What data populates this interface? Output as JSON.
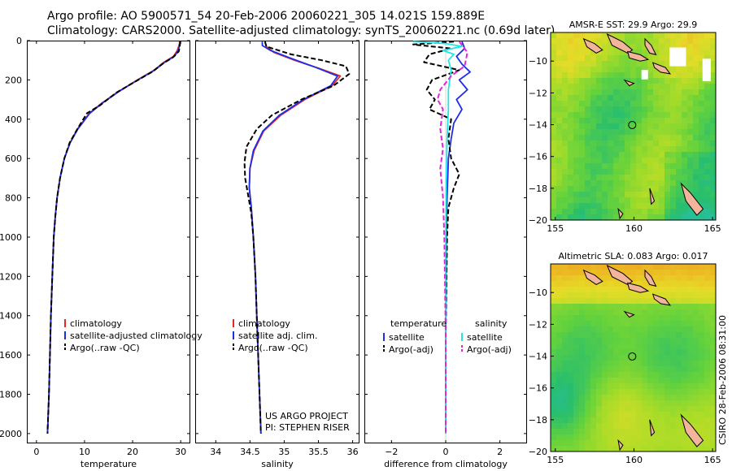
{
  "header": {
    "line1": "Argo profile: AO 5900571_54 20-Feb-2006 20060221_305 14.021S 159.889E",
    "line2": "Climatology: CARS2000. Satellite-adjusted climatology: synTS_20060221.nc (0.69d later)"
  },
  "credit": {
    "line1": "US ARGO PROJECT",
    "line2": "PI: STEPHEN RISER"
  },
  "side_note": "CSIRO 28-Feb-2006 08:31:00",
  "colors": {
    "climatology": "#e8281e",
    "satellite": "#1c2ee6",
    "argo": "#000000",
    "sat_salinity": "#22e6e6",
    "argo_salinity": "#e026d8"
  },
  "chart_data": [
    {
      "type": "line",
      "id": "temperature",
      "xlabel": "temperature",
      "ylabel": "",
      "xlim": [
        -2,
        32
      ],
      "ylim": [
        2050,
        0
      ],
      "xticks": [
        0,
        10,
        20,
        30
      ],
      "yticks": [
        0,
        200,
        400,
        600,
        800,
        1000,
        1200,
        1400,
        1600,
        1800,
        2000
      ],
      "legend": [
        "climatology",
        "satellite-adjusted climatology",
        "Argo(..raw -QC)"
      ],
      "series": [
        {
          "name": "climatology",
          "style": "solid",
          "color": "climatology",
          "points": [
            [
              29.8,
              5
            ],
            [
              29.7,
              20
            ],
            [
              29.3,
              50
            ],
            [
              28.5,
              80
            ],
            [
              26.5,
              110
            ],
            [
              24.5,
              150
            ],
            [
              21,
              200
            ],
            [
              17,
              260
            ],
            [
              13.5,
              320
            ],
            [
              11,
              370
            ],
            [
              8.5,
              450
            ],
            [
              7,
              520
            ],
            [
              5.8,
              600
            ],
            [
              4.9,
              700
            ],
            [
              4.3,
              800
            ],
            [
              3.9,
              900
            ],
            [
              3.6,
              1000
            ],
            [
              3.3,
              1200
            ],
            [
              3,
              1400
            ],
            [
              2.8,
              1600
            ],
            [
              2.6,
              1800
            ],
            [
              2.3,
              2000
            ]
          ]
        },
        {
          "name": "satellite-adjusted climatology",
          "style": "solid",
          "color": "satellite",
          "points": [
            [
              29.9,
              5
            ],
            [
              29.8,
              20
            ],
            [
              29.5,
              50
            ],
            [
              28.7,
              80
            ],
            [
              26.7,
              110
            ],
            [
              24.6,
              150
            ],
            [
              21.1,
              200
            ],
            [
              17.1,
              260
            ],
            [
              13.6,
              320
            ],
            [
              11.1,
              370
            ],
            [
              8.6,
              450
            ],
            [
              7,
              520
            ],
            [
              5.8,
              600
            ],
            [
              4.9,
              700
            ],
            [
              4.3,
              800
            ],
            [
              3.9,
              900
            ],
            [
              3.6,
              1000
            ],
            [
              3.3,
              1200
            ],
            [
              3,
              1400
            ],
            [
              2.8,
              1600
            ],
            [
              2.6,
              1800
            ],
            [
              2.3,
              2000
            ]
          ]
        },
        {
          "name": "Argo(..raw -QC)",
          "style": "dashed",
          "color": "argo",
          "points": [
            [
              29.9,
              5
            ],
            [
              29.8,
              30
            ],
            [
              29.6,
              55
            ],
            [
              28.4,
              85
            ],
            [
              26.4,
              115
            ],
            [
              24,
              160
            ],
            [
              20.8,
              205
            ],
            [
              16.6,
              265
            ],
            [
              13.2,
              330
            ],
            [
              10.5,
              370
            ],
            [
              8.5,
              450
            ],
            [
              6.9,
              520
            ],
            [
              5.8,
              600
            ],
            [
              4.9,
              700
            ],
            [
              4.3,
              800
            ],
            [
              3.9,
              900
            ],
            [
              3.6,
              1000
            ],
            [
              3.3,
              1200
            ],
            [
              3,
              1400
            ],
            [
              2.8,
              1600
            ],
            [
              2.6,
              1800
            ],
            [
              2.3,
              2000
            ]
          ]
        }
      ]
    },
    {
      "type": "line",
      "id": "salinity",
      "xlabel": "salinity",
      "ylabel": "",
      "xlim": [
        33.7,
        36.1
      ],
      "ylim": [
        2050,
        0
      ],
      "xticks": [
        34,
        34.5,
        35,
        35.5,
        36
      ],
      "legend": [
        "climatology",
        "satellite adj. clim.",
        "Argo(..raw -QC)"
      ],
      "series": [
        {
          "name": "climatology",
          "style": "solid",
          "color": "climatology",
          "points": [
            [
              34.72,
              5
            ],
            [
              34.74,
              30
            ],
            [
              34.85,
              60
            ],
            [
              35.15,
              100
            ],
            [
              35.5,
              140
            ],
            [
              35.82,
              180
            ],
            [
              35.7,
              230
            ],
            [
              35.3,
              300
            ],
            [
              34.95,
              380
            ],
            [
              34.7,
              460
            ],
            [
              34.56,
              560
            ],
            [
              34.5,
              650
            ],
            [
              34.49,
              750
            ],
            [
              34.52,
              850
            ],
            [
              34.55,
              1000
            ],
            [
              34.58,
              1200
            ],
            [
              34.6,
              1400
            ],
            [
              34.62,
              1600
            ],
            [
              34.64,
              1800
            ],
            [
              34.66,
              2000
            ]
          ]
        },
        {
          "name": "satellite adj. clim.",
          "style": "solid",
          "color": "satellite",
          "points": [
            [
              34.68,
              5
            ],
            [
              34.68,
              25
            ],
            [
              34.8,
              50
            ],
            [
              35.1,
              90
            ],
            [
              35.45,
              135
            ],
            [
              35.78,
              180
            ],
            [
              35.68,
              230
            ],
            [
              35.28,
              300
            ],
            [
              34.93,
              380
            ],
            [
              34.69,
              460
            ],
            [
              34.55,
              560
            ],
            [
              34.5,
              650
            ],
            [
              34.49,
              750
            ],
            [
              34.52,
              850
            ],
            [
              34.55,
              1000
            ],
            [
              34.58,
              1200
            ],
            [
              34.6,
              1400
            ],
            [
              34.62,
              1600
            ],
            [
              34.64,
              1800
            ],
            [
              34.66,
              2000
            ]
          ]
        },
        {
          "name": "Argo(..raw -QC)",
          "style": "dashed",
          "color": "argo",
          "points": [
            [
              34.72,
              5
            ],
            [
              34.74,
              30
            ],
            [
              35.1,
              70
            ],
            [
              35.55,
              100
            ],
            [
              35.9,
              130
            ],
            [
              35.95,
              170
            ],
            [
              35.72,
              230
            ],
            [
              35.25,
              300
            ],
            [
              34.82,
              380
            ],
            [
              34.6,
              450
            ],
            [
              34.45,
              540
            ],
            [
              34.42,
              620
            ],
            [
              34.43,
              700
            ],
            [
              34.47,
              780
            ],
            [
              34.52,
              880
            ],
            [
              34.55,
              1000
            ],
            [
              34.58,
              1200
            ],
            [
              34.6,
              1400
            ],
            [
              34.62,
              1600
            ],
            [
              34.64,
              1800
            ],
            [
              34.66,
              2000
            ]
          ]
        }
      ]
    },
    {
      "type": "line",
      "id": "difference",
      "xlabel": "difference from climatology",
      "ylabel": "",
      "xlim": [
        -3,
        3
      ],
      "ylim": [
        2050,
        0
      ],
      "xticks": [
        -2,
        0,
        2
      ],
      "legend_groups": [
        {
          "title": "temperature",
          "entries": [
            "satellite",
            "Argo(-adj)"
          ]
        },
        {
          "title": "salinity",
          "entries": [
            "satellite",
            "Argo(-adj)"
          ]
        }
      ],
      "series": [
        {
          "name": "temperature satellite",
          "style": "solid",
          "color": "satellite",
          "points": [
            [
              0.6,
              5
            ],
            [
              0.7,
              40
            ],
            [
              0.4,
              80
            ],
            [
              0.6,
              120
            ],
            [
              0.9,
              160
            ],
            [
              0.5,
              200
            ],
            [
              0.8,
              250
            ],
            [
              0.4,
              300
            ],
            [
              0.6,
              350
            ],
            [
              0.3,
              420
            ],
            [
              0.2,
              500
            ],
            [
              0.1,
              600
            ],
            [
              0.05,
              800
            ],
            [
              0.02,
              1000
            ],
            [
              0,
              1500
            ],
            [
              0,
              2000
            ]
          ]
        },
        {
          "name": "temperature Argo(-adj)",
          "style": "dashed",
          "color": "argo",
          "points": [
            [
              0.3,
              5
            ],
            [
              -1.2,
              20
            ],
            [
              0.2,
              40
            ],
            [
              -0.6,
              70
            ],
            [
              -0.8,
              110
            ],
            [
              0.5,
              150
            ],
            [
              -0.5,
              200
            ],
            [
              -0.7,
              250
            ],
            [
              -0.4,
              300
            ],
            [
              -0.6,
              350
            ],
            [
              0.2,
              400
            ],
            [
              0.1,
              500
            ],
            [
              0.2,
              600
            ],
            [
              0.5,
              680
            ],
            [
              0.3,
              750
            ],
            [
              0.1,
              850
            ],
            [
              0.05,
              1000
            ],
            [
              0,
              1500
            ],
            [
              0,
              2000
            ]
          ]
        },
        {
          "name": "salinity satellite",
          "style": "solid",
          "color": "sat_salinity",
          "points": [
            [
              -1.2,
              5
            ],
            [
              0,
              15
            ],
            [
              0.6,
              30
            ],
            [
              -0.1,
              50
            ],
            [
              0.3,
              70
            ],
            [
              0.1,
              100
            ],
            [
              0.2,
              150
            ],
            [
              0.1,
              250
            ],
            [
              0.1,
              350
            ],
            [
              0.05,
              500
            ],
            [
              0.02,
              700
            ],
            [
              0,
              1000
            ],
            [
              0,
              2000
            ]
          ]
        },
        {
          "name": "salinity Argo(-adj)",
          "style": "dashed",
          "color": "argo_salinity",
          "points": [
            [
              0.5,
              5
            ],
            [
              0.8,
              60
            ],
            [
              0.7,
              130
            ],
            [
              0.2,
              180
            ],
            [
              -0.2,
              250
            ],
            [
              -0.3,
              300
            ],
            [
              -0.1,
              350
            ],
            [
              -0.2,
              450
            ],
            [
              -0.1,
              550
            ],
            [
              -0.2,
              650
            ],
            [
              -0.1,
              800
            ],
            [
              -0.05,
              1000
            ],
            [
              0,
              1500
            ],
            [
              0,
              2000
            ]
          ]
        }
      ]
    },
    {
      "type": "heatmap",
      "id": "sst-map",
      "title": "AMSR-E SST: 29.9 Argo: 29.9",
      "xlim": [
        154.7,
        165.2
      ],
      "ylim": [
        -20,
        -8.2
      ],
      "xticks": [
        155,
        160,
        165
      ],
      "yticks": [
        -10,
        -12,
        -14,
        -16,
        -18,
        -20
      ],
      "float_position": {
        "lon": 159.889,
        "lat": -14.021
      }
    },
    {
      "type": "heatmap",
      "id": "sla-map",
      "title": "Altimetric SLA: 0.083 Argo: 0.017",
      "xlim": [
        154.7,
        165.2
      ],
      "ylim": [
        -20,
        -8.2
      ],
      "xticks": [
        155,
        160,
        165
      ],
      "yticks": [
        -10,
        -12,
        -14,
        -16,
        -18,
        -20
      ],
      "float_position": {
        "lon": 159.889,
        "lat": -14.021
      }
    }
  ]
}
